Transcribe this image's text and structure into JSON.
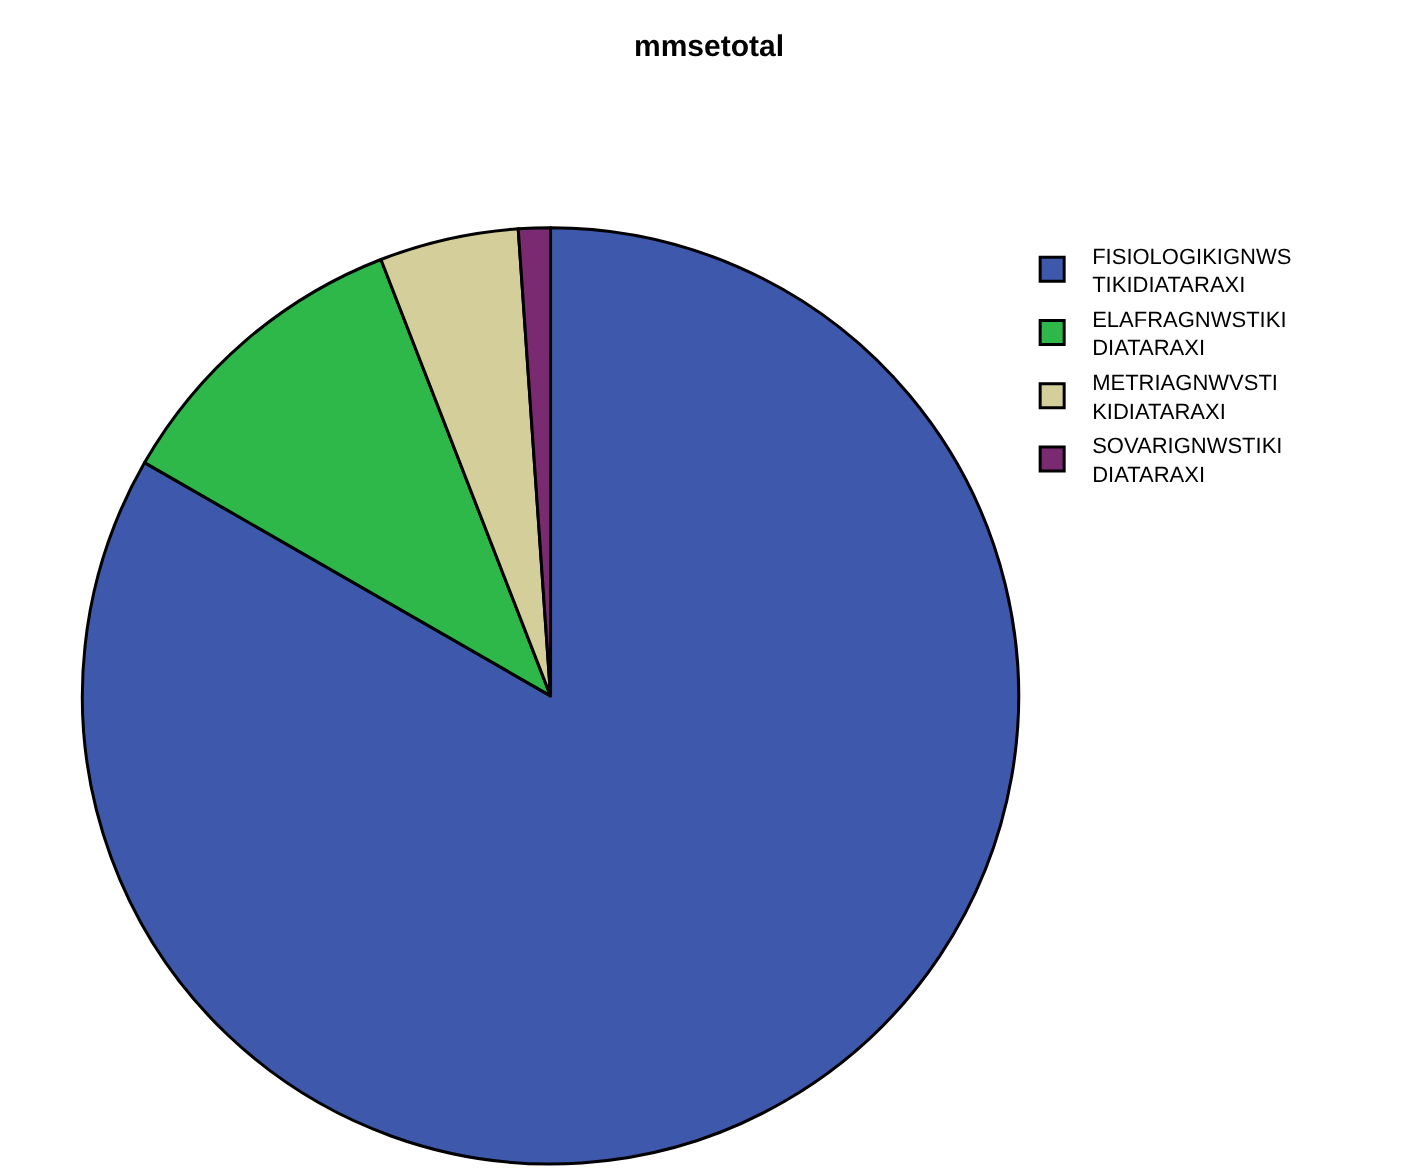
{
  "chart_data": {
    "type": "pie",
    "title": "mmsetotal",
    "categories": [
      "FISIOLOGIKIGNWS\nTIKIDIATARAXI",
      "ELAFRAGNWSTIKI\nDIATARAXI",
      "METRIAGNWVSTI\nKIDIATARAXI",
      "SOVARIGNWSTIKI\nDIATARAXI"
    ],
    "values": [
      83.3,
      10.8,
      4.8,
      1.1
    ],
    "colors": [
      "#3e58ac",
      "#2fb84a",
      "#d4cf9a",
      "#7a2a70"
    ],
    "legend": "top right"
  }
}
